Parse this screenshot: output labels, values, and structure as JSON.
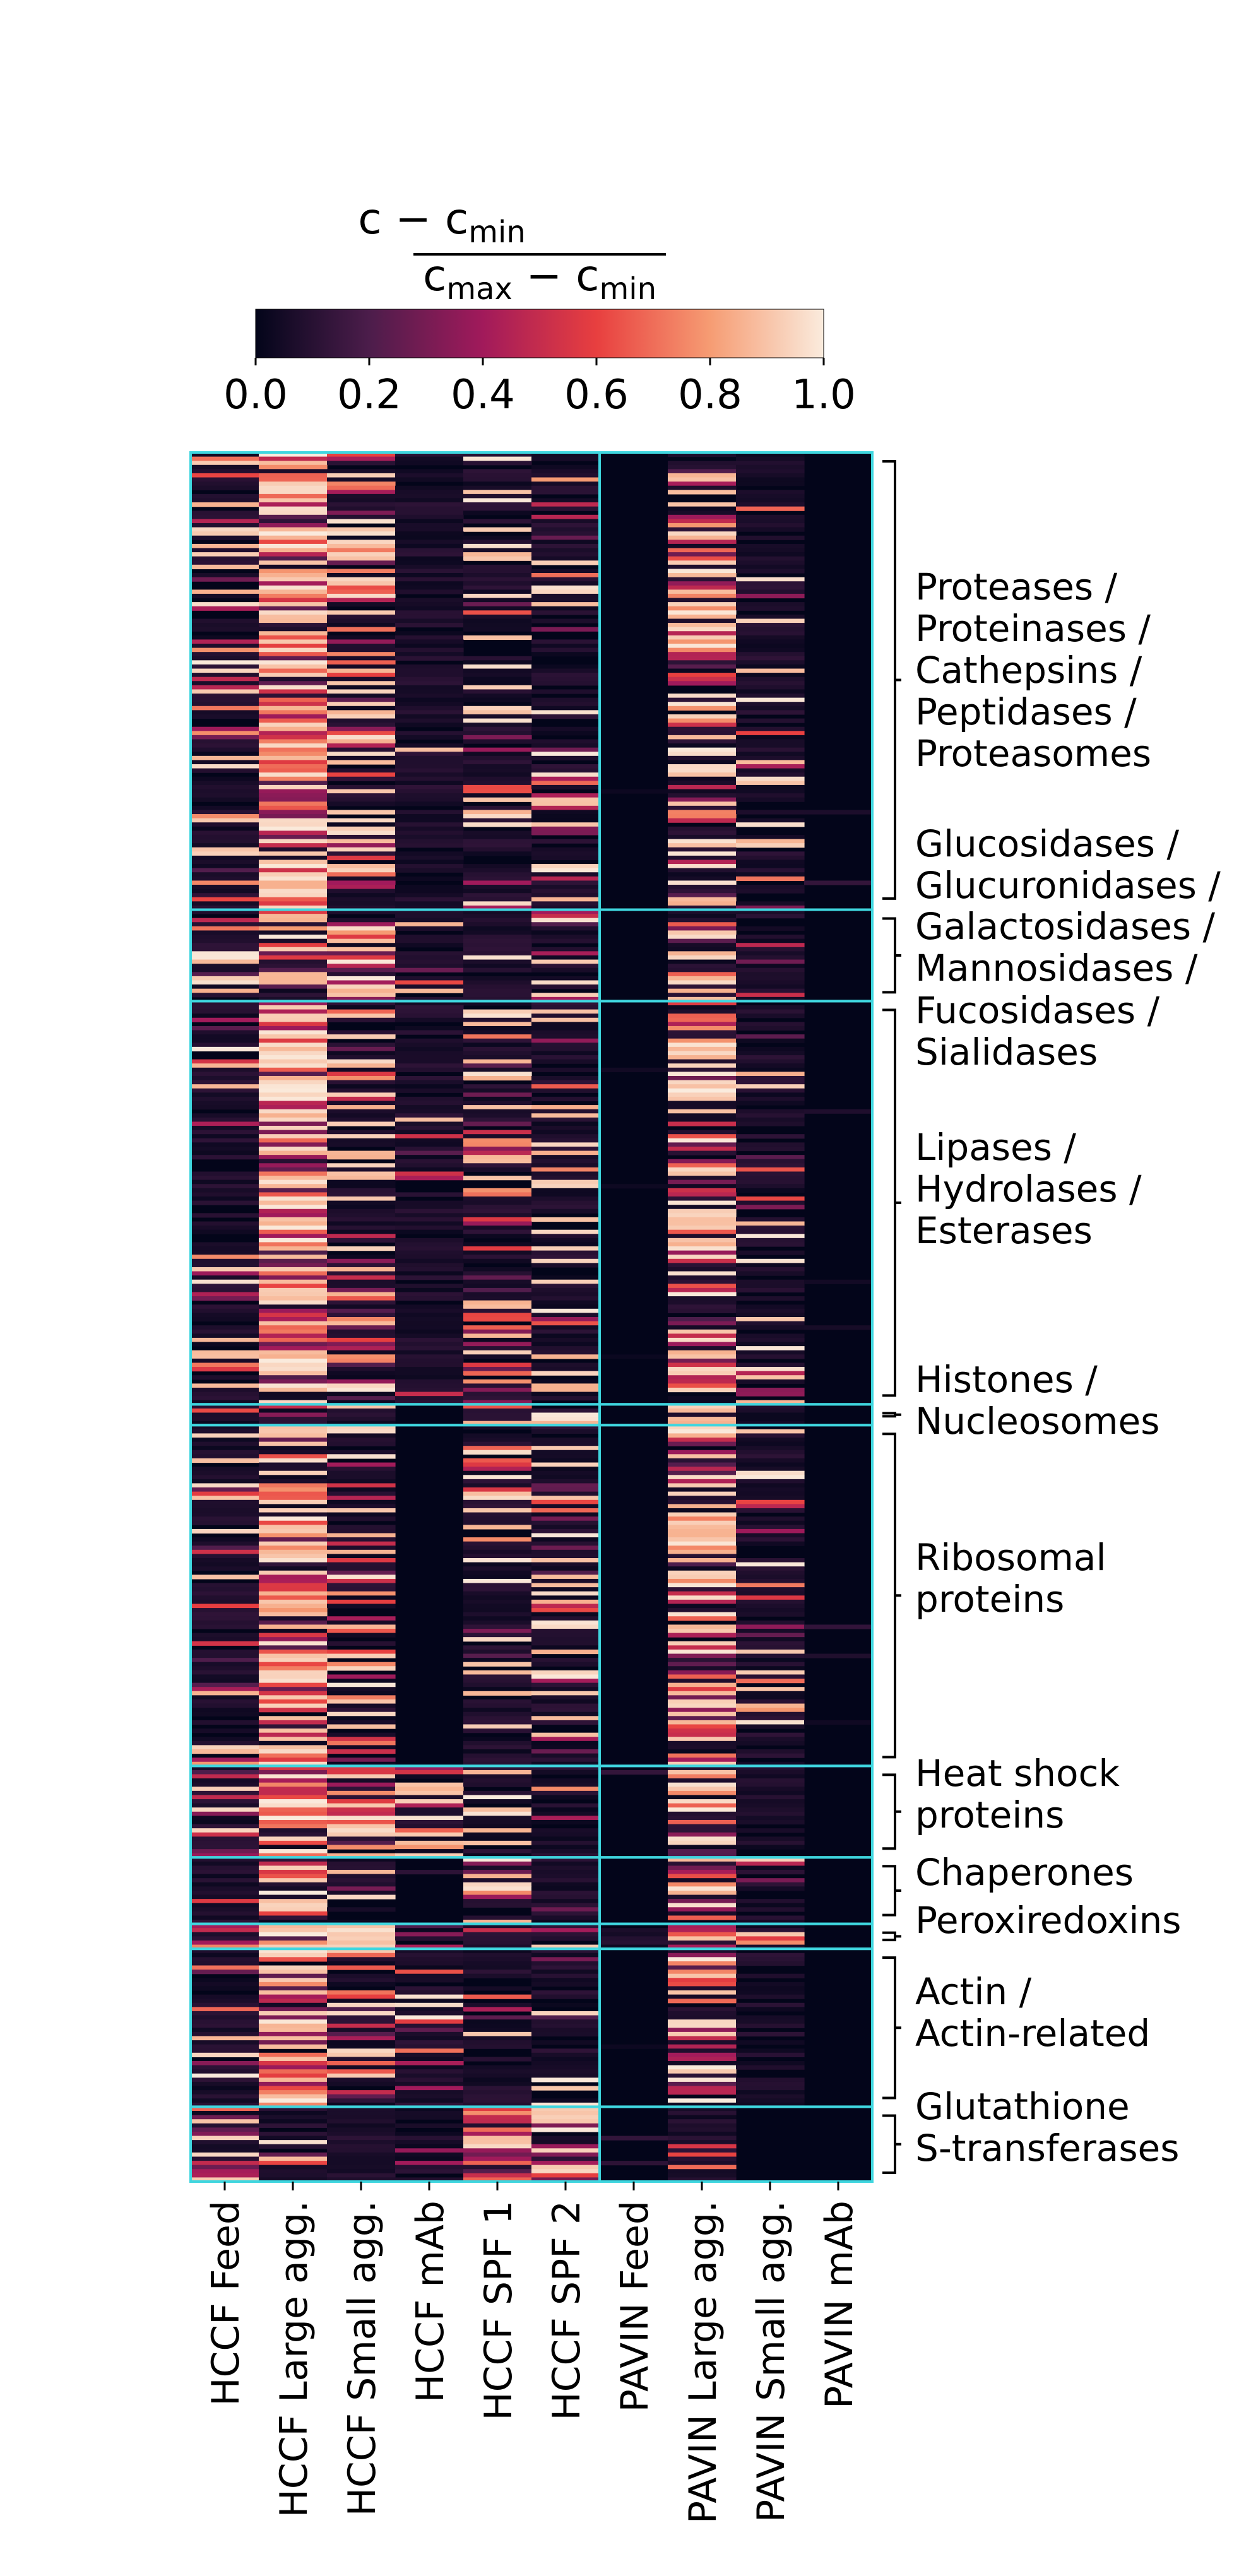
{
  "chart_data": {
    "type": "heatmap",
    "colorbar": {
      "label_numerator": "c − c",
      "label_numerator_sub": "min",
      "label_denominator_a": "c",
      "label_denominator_a_sub": "max",
      "label_denominator_b": " − c",
      "label_denominator_b_sub": "min",
      "range": [
        0,
        1
      ],
      "ticks": [
        "0.0",
        "0.2",
        "0.4",
        "0.6",
        "0.8",
        "1.0"
      ],
      "colors": [
        "#03051a",
        "#4c1d4b",
        "#a11a5b",
        "#e83f3f",
        "#f69c73",
        "#faebdd"
      ]
    },
    "columns": [
      "HCCF Feed",
      "HCCF Large agg.",
      "HCCF Small agg.",
      "HCCF mAb",
      "HCCF SPF 1",
      "HCCF SPF 2",
      "PAVIN Feed",
      "PAVIN Large agg.",
      "PAVIN Small agg.",
      "PAVIN mAb"
    ],
    "column_group_split_after": 6,
    "row_blocks": [
      {
        "name": "block-1",
        "rows": 110,
        "mean": [
          0.2,
          0.92,
          0.45,
          0.05,
          0.2,
          0.22,
          0.0,
          0.55,
          0.12,
          0.0
        ]
      },
      {
        "name": "block-2",
        "rows": 22,
        "mean": [
          0.3,
          0.6,
          0.7,
          0.15,
          0.1,
          0.25,
          0.0,
          0.35,
          0.05,
          0.0
        ]
      },
      {
        "name": "block-3",
        "rows": 97,
        "mean": [
          0.2,
          0.9,
          0.4,
          0.05,
          0.3,
          0.2,
          0.0,
          0.55,
          0.15,
          0.0
        ]
      },
      {
        "name": "block-4",
        "rows": 5,
        "mean": [
          0.2,
          0.6,
          0.3,
          0.0,
          0.2,
          0.5,
          0.0,
          0.6,
          0.1,
          0.0
        ]
      },
      {
        "name": "block-5",
        "rows": 82,
        "mean": [
          0.2,
          0.75,
          0.3,
          0.0,
          0.2,
          0.35,
          0.0,
          0.65,
          0.2,
          0.0
        ]
      },
      {
        "name": "block-6",
        "rows": 22,
        "mean": [
          0.3,
          0.85,
          0.5,
          0.35,
          0.2,
          0.2,
          0.0,
          0.7,
          0.1,
          0.0
        ]
      },
      {
        "name": "block-7",
        "rows": 16,
        "mean": [
          0.2,
          0.55,
          0.3,
          0.0,
          0.4,
          0.05,
          0.0,
          0.45,
          0.05,
          0.0
        ]
      },
      {
        "name": "block-8",
        "rows": 6,
        "mean": [
          0.5,
          0.7,
          0.6,
          0.5,
          0.45,
          0.55,
          0.2,
          0.7,
          0.4,
          0.0
        ]
      },
      {
        "name": "block-9",
        "rows": 38,
        "mean": [
          0.25,
          0.9,
          0.45,
          0.2,
          0.15,
          0.15,
          0.0,
          0.6,
          0.05,
          0.0
        ]
      },
      {
        "name": "block-10",
        "rows": 18,
        "mean": [
          0.5,
          0.25,
          0.05,
          0.1,
          0.8,
          0.6,
          0.0,
          0.1,
          0.0,
          0.0
        ]
      }
    ],
    "groups": [
      {
        "lines": [
          "Proteases /",
          "Proteinases /",
          "Cathepsins /",
          "Peptidases /",
          "Proteasomes"
        ],
        "from_block": 0,
        "to_block": 0
      },
      {
        "lines": [
          "Glucosidases /",
          "Glucuronidases /"
        ],
        "from_block": 0,
        "to_block": 0
      },
      {
        "lines": [
          "Galactosidases /",
          "Mannosidases  /"
        ],
        "from_block": 1,
        "to_block": 1
      },
      {
        "lines": [
          "Fucosidases /",
          "Sialidases"
        ],
        "from_block": 2,
        "to_block": 2
      },
      {
        "lines": [
          "Lipases /",
          "Hydrolases /",
          "Esterases"
        ],
        "from_block": 2,
        "to_block": 2
      },
      {
        "lines": [
          "Histones /",
          "Nucleosomes"
        ],
        "from_block": 3,
        "to_block": 3
      },
      {
        "lines": [
          "Ribosomal",
          "proteins"
        ],
        "from_block": 4,
        "to_block": 4
      },
      {
        "lines": [
          "Heat shock",
          "proteins"
        ],
        "from_block": 5,
        "to_block": 5
      },
      {
        "lines": [
          "Chaperones"
        ],
        "from_block": 6,
        "to_block": 6
      },
      {
        "lines": [
          "Peroxiredoxins"
        ],
        "from_block": 7,
        "to_block": 7
      },
      {
        "lines": [
          "Actin /",
          "Actin-related"
        ],
        "from_block": 8,
        "to_block": 8
      },
      {
        "lines": [
          "Glutathione",
          "S-transferases"
        ],
        "from_block": 9,
        "to_block": 9
      }
    ],
    "xlabel": "",
    "ylabel": "",
    "title": ""
  }
}
